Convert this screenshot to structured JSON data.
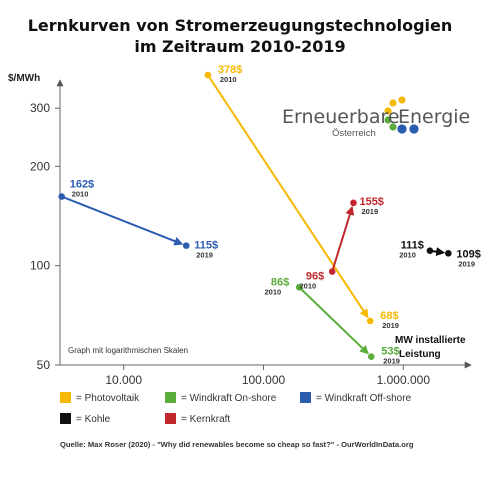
{
  "title_line1": "Lernkurven von Stromerzeugungstechnologien",
  "title_line2": "im Zeitraum 2010-2019",
  "logo": {
    "word1": "Erneuerbare",
    "word2": "Energie",
    "sub": "Österreich",
    "colors": [
      "#f6b800",
      "#5aac3c",
      "#2b5cb0"
    ]
  },
  "chart_data": {
    "type": "line",
    "x_scale": "log",
    "y_scale": "log",
    "ylabel": "$/MWh",
    "xlabel_line1": "MW installierte",
    "xlabel_line2": "Leistung",
    "note": "Graph mit logarithmischen Skalen",
    "x_ticks": [
      {
        "value": 10000,
        "label": "10.000"
      },
      {
        "value": 100000,
        "label": "100.000"
      },
      {
        "value": 1000000,
        "label": "1.000.000"
      }
    ],
    "y_ticks": [
      {
        "value": 50,
        "label": "50"
      },
      {
        "value": 100,
        "label": "100"
      },
      {
        "value": 200,
        "label": "200"
      },
      {
        "value": 300,
        "label": "300"
      }
    ],
    "xlim": [
      3500,
      3000000
    ],
    "ylim": [
      50,
      420
    ],
    "series": [
      {
        "name": "Photovoltaik",
        "color": "#f6b800",
        "points": [
          {
            "x": 40000,
            "y": 378,
            "label": "378$",
            "year": "2010"
          },
          {
            "x": 580000,
            "y": 68,
            "label": "68$",
            "year": "2019"
          }
        ]
      },
      {
        "name": "Windkraft On-shore",
        "color": "#5aac3c",
        "points": [
          {
            "x": 180000,
            "y": 86,
            "label": "86$",
            "year": "2010"
          },
          {
            "x": 590000,
            "y": 53,
            "label": "53$",
            "year": "2019"
          }
        ]
      },
      {
        "name": "Windkraft Off-shore",
        "color": "#2b5cb0",
        "points": [
          {
            "x": 3600,
            "y": 162,
            "label": "162$",
            "year": "2010"
          },
          {
            "x": 28000,
            "y": 115,
            "label": "115$",
            "year": "2019"
          }
        ]
      },
      {
        "name": "Kohle",
        "color": "#111111",
        "points": [
          {
            "x": 1550000,
            "y": 111,
            "label": "111$",
            "year": "2010"
          },
          {
            "x": 2100000,
            "y": 109,
            "label": "109$",
            "year": "2019"
          }
        ]
      },
      {
        "name": "Kernkraft",
        "color": "#c1272d",
        "points": [
          {
            "x": 310000,
            "y": 96,
            "label": "96$",
            "year": "2010"
          },
          {
            "x": 440000,
            "y": 155,
            "label": "155$",
            "year": "2019"
          }
        ]
      }
    ]
  },
  "legend": [
    {
      "color": "#f6b800",
      "text": "= Photovoltaik"
    },
    {
      "color": "#5aac3c",
      "text": "= Windkraft On-shore"
    },
    {
      "color": "#2b5cb0",
      "text": "= Windkraft Off-shore"
    },
    {
      "color": "#111111",
      "text": "= Kohle"
    },
    {
      "color": "#c1272d",
      "text": "= Kernkraft"
    }
  ],
  "source": "Quelle: Max Roser (2020) - \"Why did renewables become so cheap so fast?\" - OurWorldInData.org"
}
